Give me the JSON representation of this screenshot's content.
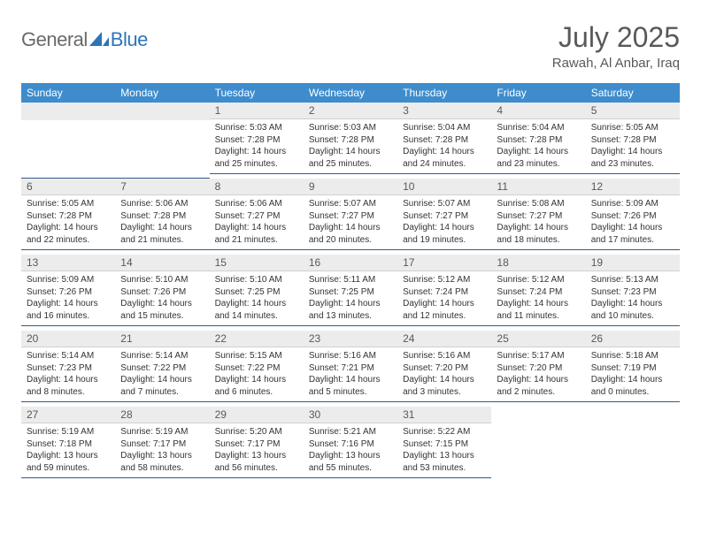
{
  "brand": {
    "part1": "General",
    "part2": "Blue"
  },
  "title": "July 2025",
  "location": "Rawah, Al Anbar, Iraq",
  "colors": {
    "header_bg": "#3e8ccc",
    "header_text": "#ffffff",
    "daynum_bg": "#ececec",
    "text": "#333333",
    "muted": "#595959",
    "divider": "#2e5c8a",
    "brand_gray": "#6a6a6a",
    "brand_blue": "#2e75b6"
  },
  "weekdays": [
    "Sunday",
    "Monday",
    "Tuesday",
    "Wednesday",
    "Thursday",
    "Friday",
    "Saturday"
  ],
  "weeks": [
    [
      null,
      null,
      {
        "n": "1",
        "sr": "5:03 AM",
        "ss": "7:28 PM",
        "dl": "14 hours and 25 minutes."
      },
      {
        "n": "2",
        "sr": "5:03 AM",
        "ss": "7:28 PM",
        "dl": "14 hours and 25 minutes."
      },
      {
        "n": "3",
        "sr": "5:04 AM",
        "ss": "7:28 PM",
        "dl": "14 hours and 24 minutes."
      },
      {
        "n": "4",
        "sr": "5:04 AM",
        "ss": "7:28 PM",
        "dl": "14 hours and 23 minutes."
      },
      {
        "n": "5",
        "sr": "5:05 AM",
        "ss": "7:28 PM",
        "dl": "14 hours and 23 minutes."
      }
    ],
    [
      {
        "n": "6",
        "sr": "5:05 AM",
        "ss": "7:28 PM",
        "dl": "14 hours and 22 minutes."
      },
      {
        "n": "7",
        "sr": "5:06 AM",
        "ss": "7:28 PM",
        "dl": "14 hours and 21 minutes."
      },
      {
        "n": "8",
        "sr": "5:06 AM",
        "ss": "7:27 PM",
        "dl": "14 hours and 21 minutes."
      },
      {
        "n": "9",
        "sr": "5:07 AM",
        "ss": "7:27 PM",
        "dl": "14 hours and 20 minutes."
      },
      {
        "n": "10",
        "sr": "5:07 AM",
        "ss": "7:27 PM",
        "dl": "14 hours and 19 minutes."
      },
      {
        "n": "11",
        "sr": "5:08 AM",
        "ss": "7:27 PM",
        "dl": "14 hours and 18 minutes."
      },
      {
        "n": "12",
        "sr": "5:09 AM",
        "ss": "7:26 PM",
        "dl": "14 hours and 17 minutes."
      }
    ],
    [
      {
        "n": "13",
        "sr": "5:09 AM",
        "ss": "7:26 PM",
        "dl": "14 hours and 16 minutes."
      },
      {
        "n": "14",
        "sr": "5:10 AM",
        "ss": "7:26 PM",
        "dl": "14 hours and 15 minutes."
      },
      {
        "n": "15",
        "sr": "5:10 AM",
        "ss": "7:25 PM",
        "dl": "14 hours and 14 minutes."
      },
      {
        "n": "16",
        "sr": "5:11 AM",
        "ss": "7:25 PM",
        "dl": "14 hours and 13 minutes."
      },
      {
        "n": "17",
        "sr": "5:12 AM",
        "ss": "7:24 PM",
        "dl": "14 hours and 12 minutes."
      },
      {
        "n": "18",
        "sr": "5:12 AM",
        "ss": "7:24 PM",
        "dl": "14 hours and 11 minutes."
      },
      {
        "n": "19",
        "sr": "5:13 AM",
        "ss": "7:23 PM",
        "dl": "14 hours and 10 minutes."
      }
    ],
    [
      {
        "n": "20",
        "sr": "5:14 AM",
        "ss": "7:23 PM",
        "dl": "14 hours and 8 minutes."
      },
      {
        "n": "21",
        "sr": "5:14 AM",
        "ss": "7:22 PM",
        "dl": "14 hours and 7 minutes."
      },
      {
        "n": "22",
        "sr": "5:15 AM",
        "ss": "7:22 PM",
        "dl": "14 hours and 6 minutes."
      },
      {
        "n": "23",
        "sr": "5:16 AM",
        "ss": "7:21 PM",
        "dl": "14 hours and 5 minutes."
      },
      {
        "n": "24",
        "sr": "5:16 AM",
        "ss": "7:20 PM",
        "dl": "14 hours and 3 minutes."
      },
      {
        "n": "25",
        "sr": "5:17 AM",
        "ss": "7:20 PM",
        "dl": "14 hours and 2 minutes."
      },
      {
        "n": "26",
        "sr": "5:18 AM",
        "ss": "7:19 PM",
        "dl": "14 hours and 0 minutes."
      }
    ],
    [
      {
        "n": "27",
        "sr": "5:19 AM",
        "ss": "7:18 PM",
        "dl": "13 hours and 59 minutes."
      },
      {
        "n": "28",
        "sr": "5:19 AM",
        "ss": "7:17 PM",
        "dl": "13 hours and 58 minutes."
      },
      {
        "n": "29",
        "sr": "5:20 AM",
        "ss": "7:17 PM",
        "dl": "13 hours and 56 minutes."
      },
      {
        "n": "30",
        "sr": "5:21 AM",
        "ss": "7:16 PM",
        "dl": "13 hours and 55 minutes."
      },
      {
        "n": "31",
        "sr": "5:22 AM",
        "ss": "7:15 PM",
        "dl": "13 hours and 53 minutes."
      },
      null,
      null
    ]
  ],
  "labels": {
    "sunrise": "Sunrise:",
    "sunset": "Sunset:",
    "daylight": "Daylight:"
  }
}
